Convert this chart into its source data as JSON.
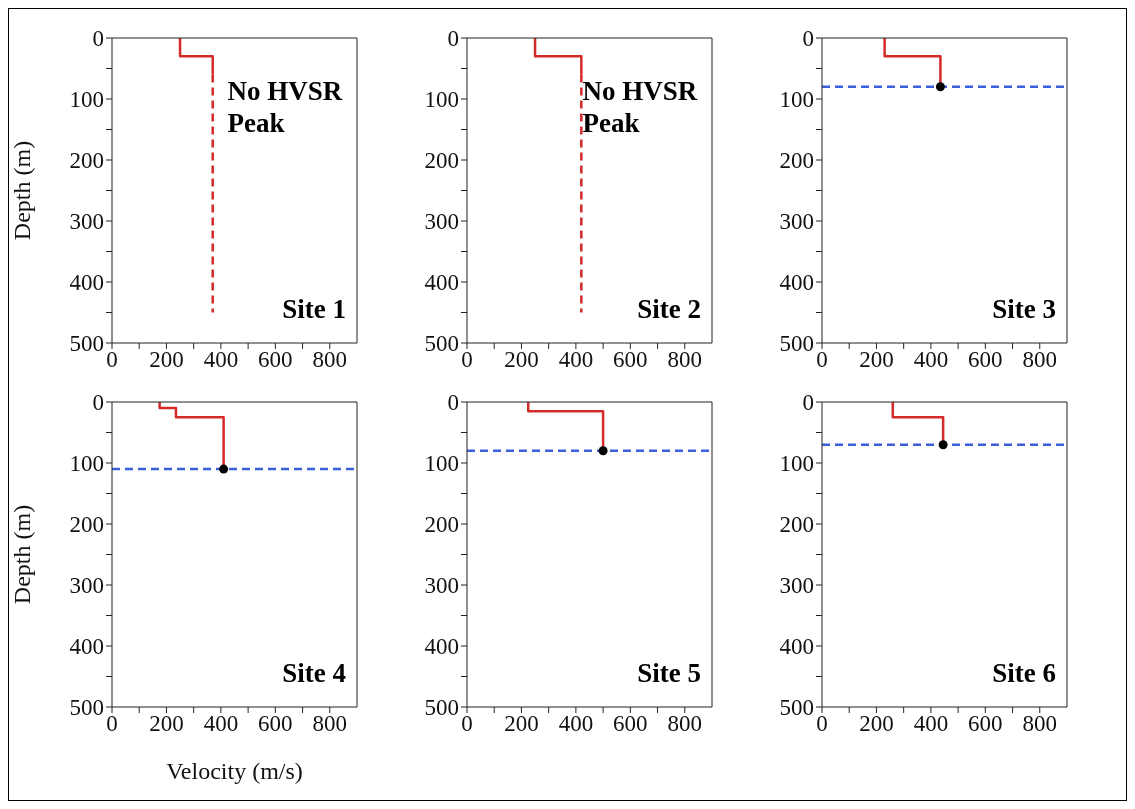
{
  "chart_data": [
    {
      "type": "line",
      "ylabel": "Depth (m)",
      "annotations": [
        "No HVSR Peak",
        "Site 1"
      ],
      "xlim": [
        0,
        900
      ],
      "xticks": [
        0,
        {
          "value": 100,
          "label": null
        },
        200,
        {
          "value": 300,
          "label": null
        },
        400,
        {
          "value": 500,
          "label": null
        },
        600,
        {
          "value": 700,
          "label": null
        },
        800
      ],
      "ylim": [
        500,
        0
      ],
      "yticks": [
        0,
        {
          "value": 50,
          "label": null
        },
        100,
        {
          "value": 150,
          "label": null
        },
        200,
        {
          "value": 250,
          "label": null
        },
        300,
        {
          "value": 350,
          "label": null
        },
        400,
        {
          "value": 450,
          "label": null
        },
        500
      ],
      "series": [
        {
          "color": "#d42a2a",
          "line_style": "solid",
          "x": [
            250,
            250,
            370,
            370
          ],
          "values": [
            0,
            30,
            30,
            60
          ]
        },
        {
          "color": "#d42a2a",
          "line_style": "dashed",
          "x": [
            370,
            370
          ],
          "values": [
            60,
            450
          ]
        }
      ]
    },
    {
      "type": "line",
      "annotations": [
        "No HVSR Peak",
        "Site 2"
      ],
      "xlim": [
        0,
        900
      ],
      "xticks": [
        0,
        {
          "value": 100,
          "label": null
        },
        200,
        {
          "value": 300,
          "label": null
        },
        400,
        {
          "value": 500,
          "label": null
        },
        600,
        {
          "value": 700,
          "label": null
        },
        800
      ],
      "ylim": [
        500,
        0
      ],
      "yticks": [
        0,
        {
          "value": 50,
          "label": null
        },
        100,
        {
          "value": 150,
          "label": null
        },
        200,
        {
          "value": 250,
          "label": null
        },
        300,
        {
          "value": 350,
          "label": null
        },
        400,
        {
          "value": 450,
          "label": null
        },
        500
      ],
      "series": [
        {
          "color": "#d42a2a",
          "line_style": "solid",
          "x": [
            250,
            250,
            420,
            420
          ],
          "values": [
            0,
            30,
            30,
            60
          ]
        },
        {
          "color": "#d42a2a",
          "line_style": "dashed",
          "x": [
            420,
            420
          ],
          "values": [
            60,
            450
          ]
        }
      ]
    },
    {
      "type": "line",
      "annotations": [
        "Site 3"
      ],
      "xlim": [
        0,
        900
      ],
      "xticks": [
        0,
        {
          "value": 100,
          "label": null
        },
        200,
        {
          "value": 300,
          "label": null
        },
        400,
        {
          "value": 500,
          "label": null
        },
        600,
        {
          "value": 700,
          "label": null
        },
        800
      ],
      "ylim": [
        500,
        0
      ],
      "yticks": [
        0,
        {
          "value": 50,
          "label": null
        },
        100,
        {
          "value": 150,
          "label": null
        },
        200,
        {
          "value": 250,
          "label": null
        },
        300,
        {
          "value": 350,
          "label": null
        },
        400,
        {
          "value": 450,
          "label": null
        },
        500
      ],
      "series": [
        {
          "color": "#d42a2a",
          "line_style": "solid",
          "x": [
            230,
            230,
            435,
            435
          ],
          "values": [
            0,
            30,
            30,
            80
          ]
        },
        {
          "type": "scatter",
          "color": "#000000",
          "marker": "circle",
          "x": [
            435
          ],
          "values": [
            80
          ]
        }
      ],
      "ref_lines": [
        {
          "axis": "y",
          "value": 80,
          "color": "#3a5fd9",
          "line_style": "dashed"
        }
      ]
    },
    {
      "type": "line",
      "ylabel": "Depth (m)",
      "xlabel": "Velocity (m/s)",
      "annotations": [
        "Site 4"
      ],
      "xlim": [
        0,
        900
      ],
      "xticks": [
        0,
        {
          "value": 100,
          "label": null
        },
        200,
        {
          "value": 300,
          "label": null
        },
        400,
        {
          "value": 500,
          "label": null
        },
        600,
        {
          "value": 700,
          "label": null
        },
        800
      ],
      "ylim": [
        500,
        0
      ],
      "yticks": [
        0,
        {
          "value": 50,
          "label": null
        },
        100,
        {
          "value": 150,
          "label": null
        },
        200,
        {
          "value": 250,
          "label": null
        },
        300,
        {
          "value": 350,
          "label": null
        },
        400,
        {
          "value": 450,
          "label": null
        },
        500
      ],
      "series": [
        {
          "color": "#d42a2a",
          "line_style": "solid",
          "x": [
            175,
            175,
            235,
            235,
            410,
            410
          ],
          "values": [
            0,
            10,
            10,
            25,
            25,
            110
          ]
        },
        {
          "type": "scatter",
          "color": "#000000",
          "marker": "circle",
          "x": [
            410
          ],
          "values": [
            110
          ]
        }
      ],
      "ref_lines": [
        {
          "axis": "y",
          "value": 110,
          "color": "#3a5fd9",
          "line_style": "dashed"
        }
      ]
    },
    {
      "type": "line",
      "annotations": [
        "Site 5"
      ],
      "xlim": [
        0,
        900
      ],
      "xticks": [
        0,
        {
          "value": 100,
          "label": null
        },
        200,
        {
          "value": 300,
          "label": null
        },
        400,
        {
          "value": 500,
          "label": null
        },
        600,
        {
          "value": 700,
          "label": null
        },
        800
      ],
      "ylim": [
        500,
        0
      ],
      "yticks": [
        0,
        {
          "value": 50,
          "label": null
        },
        100,
        {
          "value": 150,
          "label": null
        },
        200,
        {
          "value": 250,
          "label": null
        },
        300,
        {
          "value": 350,
          "label": null
        },
        400,
        {
          "value": 450,
          "label": null
        },
        500
      ],
      "series": [
        {
          "color": "#d42a2a",
          "line_style": "solid",
          "x": [
            225,
            225,
            500,
            500
          ],
          "values": [
            0,
            15,
            15,
            80
          ]
        },
        {
          "type": "scatter",
          "color": "#000000",
          "marker": "circle",
          "x": [
            500
          ],
          "values": [
            80
          ]
        }
      ],
      "ref_lines": [
        {
          "axis": "y",
          "value": 80,
          "color": "#3a5fd9",
          "line_style": "dashed"
        }
      ]
    },
    {
      "type": "line",
      "annotations": [
        "Site 6"
      ],
      "xlim": [
        0,
        900
      ],
      "xticks": [
        0,
        {
          "value": 100,
          "label": null
        },
        200,
        {
          "value": 300,
          "label": null
        },
        400,
        {
          "value": 500,
          "label": null
        },
        600,
        {
          "value": 700,
          "label": null
        },
        800
      ],
      "ylim": [
        500,
        0
      ],
      "yticks": [
        0,
        {
          "value": 50,
          "label": null
        },
        100,
        {
          "value": 150,
          "label": null
        },
        200,
        {
          "value": 250,
          "label": null
        },
        300,
        {
          "value": 350,
          "label": null
        },
        400,
        {
          "value": 450,
          "label": null
        },
        500
      ],
      "series": [
        {
          "color": "#d42a2a",
          "line_style": "solid",
          "x": [
            260,
            260,
            445,
            445
          ],
          "values": [
            0,
            25,
            25,
            70
          ]
        },
        {
          "type": "scatter",
          "color": "#000000",
          "marker": "circle",
          "x": [
            445
          ],
          "values": [
            70
          ]
        }
      ],
      "ref_lines": [
        {
          "axis": "y",
          "value": 70,
          "color": "#3a5fd9",
          "line_style": "dashed"
        }
      ]
    }
  ]
}
